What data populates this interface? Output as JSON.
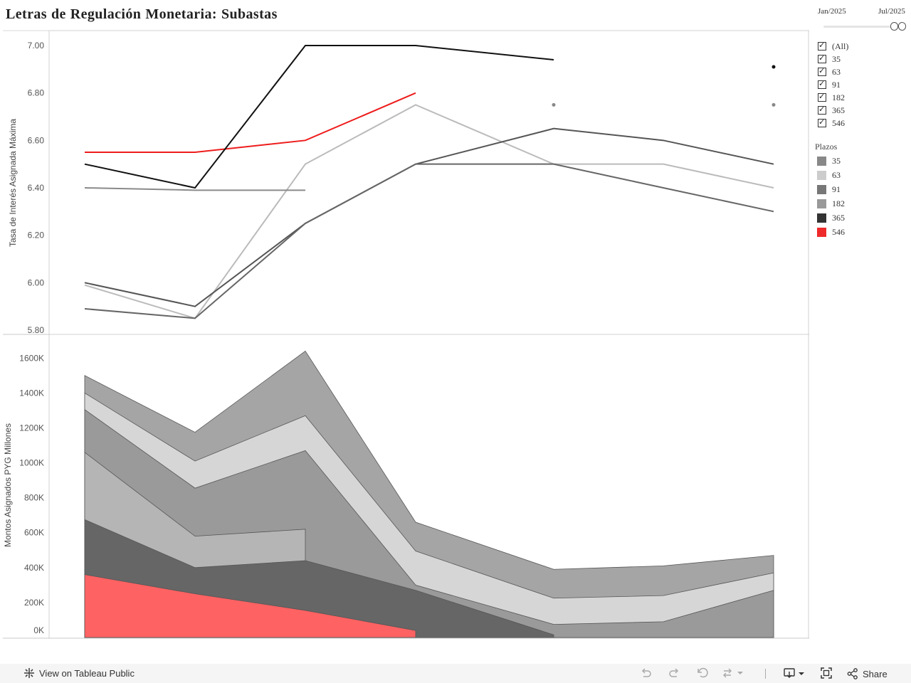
{
  "title_words": [
    "Letras",
    "de",
    "Regulación",
    "Monetaria:",
    "Subastas"
  ],
  "slider": {
    "start_label": "Jan/2025",
    "end_label": "Jul/2025"
  },
  "filter_items": [
    "(All)",
    "35",
    "63",
    "91",
    "182",
    "365",
    "546"
  ],
  "legend": {
    "title": "Plazos",
    "items": [
      {
        "label": "35",
        "color": "#888888"
      },
      {
        "label": "63",
        "color": "#cccccc"
      },
      {
        "label": "91",
        "color": "#777777"
      },
      {
        "label": "182",
        "color": "#999999"
      },
      {
        "label": "365",
        "color": "#333333"
      },
      {
        "label": "546",
        "color": "#ee2a2a"
      }
    ]
  },
  "chart_data": [
    {
      "type": "line",
      "ylabel": "Tasa de Interés Asignada Máxima",
      "ylim": [
        5.8,
        7.0
      ],
      "yticks": [
        "7.00",
        "6.80",
        "6.60",
        "6.40",
        "6.20",
        "6.00",
        "5.80"
      ],
      "x_count": 7,
      "series": [
        {
          "name": "546",
          "color": "#ee1c1c",
          "values": [
            6.55,
            6.55,
            6.6,
            6.8,
            null,
            null,
            null
          ]
        },
        {
          "name": "365",
          "color": "#111111",
          "values": [
            6.5,
            6.4,
            7.0,
            7.0,
            6.94,
            null,
            6.91
          ]
        },
        {
          "name": "63",
          "color": "#bbbbbb",
          "values": [
            5.99,
            5.85,
            6.5,
            6.75,
            6.5,
            6.5,
            6.4
          ]
        },
        {
          "name": "35",
          "color": "#8a8a8a",
          "values": [
            6.4,
            6.39,
            6.39,
            null,
            null,
            null,
            null
          ]
        },
        {
          "name": "91",
          "color": "#555555",
          "values": [
            6.0,
            5.9,
            6.25,
            6.5,
            6.65,
            6.6,
            6.5
          ]
        },
        {
          "name": "182",
          "color": "#666666",
          "values": [
            5.89,
            5.85,
            6.25,
            6.5,
            6.5,
            6.4,
            6.3
          ]
        },
        {
          "name": "",
          "color": "#888888",
          "values": [
            null,
            null,
            null,
            null,
            6.75,
            null,
            6.75
          ]
        }
      ]
    },
    {
      "type": "area",
      "ylabel": "Montos Asignados PYG Millones",
      "ylim": [
        0,
        1650000
      ],
      "yticks": [
        "1600K",
        "1400K",
        "1200K",
        "1000K",
        "800K",
        "600K",
        "400K",
        "200K",
        "0K"
      ],
      "x_count": 7,
      "layers": [
        {
          "name": "546",
          "color": "#ff6262",
          "top": [
            360000,
            250000,
            155000,
            40000,
            null,
            null,
            null
          ]
        },
        {
          "name": "365",
          "color": "#666666",
          "top": [
            675000,
            400000,
            440000,
            270000,
            15000,
            null,
            null
          ]
        },
        {
          "name": "35",
          "color": "#b5b5b5",
          "top": [
            1060000,
            580000,
            620000,
            null,
            null,
            null,
            null
          ]
        },
        {
          "name": "91",
          "color": "#9a9a9a",
          "top": [
            1305000,
            855000,
            1070000,
            300000,
            75000,
            90000,
            270000
          ]
        },
        {
          "name": "63",
          "color": "#d6d6d6",
          "top": [
            1400000,
            1010000,
            1270000,
            495000,
            225000,
            240000,
            370000
          ]
        },
        {
          "name": "182",
          "color": "#a5a5a5",
          "top": [
            1500000,
            1175000,
            1640000,
            660000,
            390000,
            410000,
            470000
          ]
        }
      ]
    }
  ],
  "footer": {
    "view_label": "View on Tableau Public",
    "share_label": "Share"
  }
}
